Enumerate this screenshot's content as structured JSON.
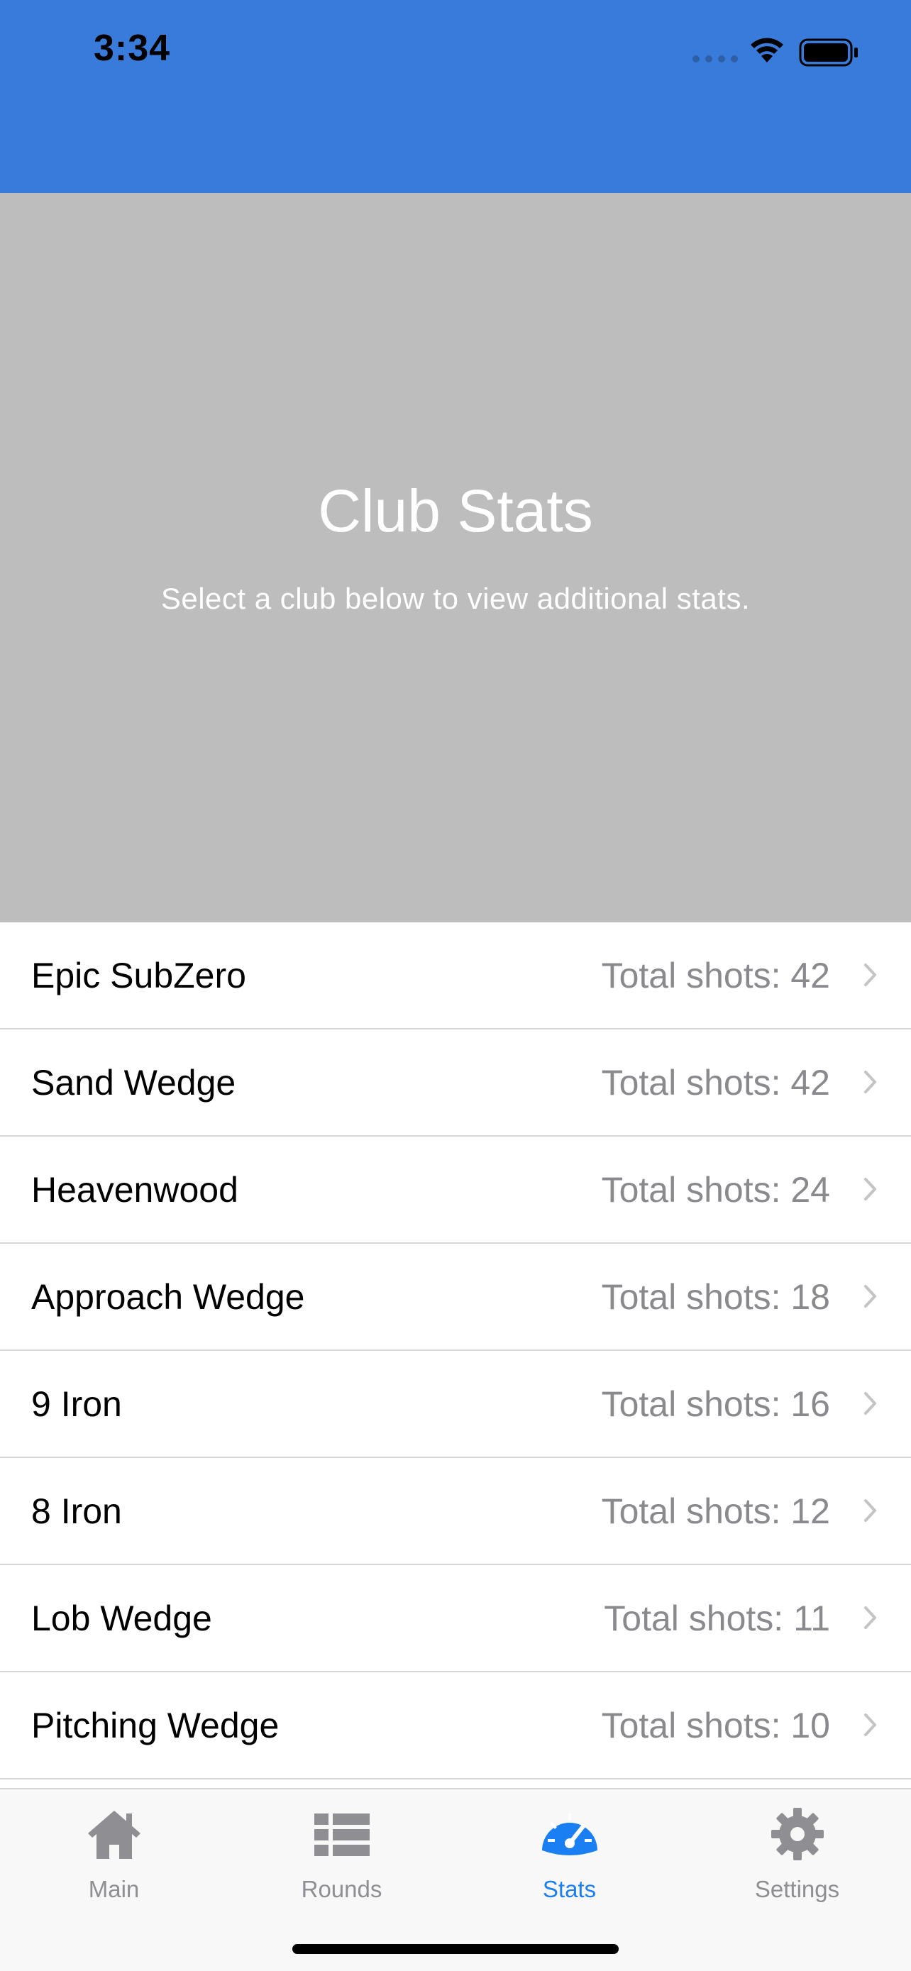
{
  "status_bar": {
    "time": "3:34"
  },
  "hero": {
    "title": "Club Stats",
    "subtitle": "Select a club below to view additional stats."
  },
  "clubs": [
    {
      "name": "Epic SubZero",
      "shots": "Total shots: 42"
    },
    {
      "name": "Sand Wedge",
      "shots": "Total shots: 42"
    },
    {
      "name": "Heavenwood",
      "shots": "Total shots: 24"
    },
    {
      "name": "Approach Wedge",
      "shots": "Total shots: 18"
    },
    {
      "name": "9 Iron",
      "shots": "Total shots: 16"
    },
    {
      "name": "8 Iron",
      "shots": "Total shots: 12"
    },
    {
      "name": "Lob Wedge",
      "shots": "Total shots: 11"
    },
    {
      "name": "Pitching Wedge",
      "shots": "Total shots: 10"
    }
  ],
  "tab_bar": {
    "tabs": [
      {
        "label": "Main",
        "icon": "house-icon"
      },
      {
        "label": "Rounds",
        "icon": "list-icon"
      },
      {
        "label": "Stats",
        "icon": "speedometer-icon"
      },
      {
        "label": "Settings",
        "icon": "gear-icon"
      }
    ],
    "active_tab": "Stats"
  },
  "colors": {
    "header_blue": "#387bdb",
    "hero_gray": "#bdbdbd",
    "active_tab": "#1a7ff2",
    "inactive_tab": "#8e8e93"
  }
}
